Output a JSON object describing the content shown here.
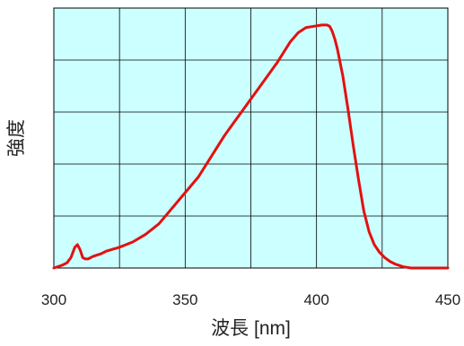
{
  "chart_data": {
    "type": "line",
    "title": "",
    "xlabel": "波長 [nm]",
    "ylabel": "強度",
    "xlim": [
      300,
      450
    ],
    "ylim": [
      0,
      1
    ],
    "x_ticks": [
      300,
      350,
      400,
      450
    ],
    "x_tick_labels": [
      "300",
      "350",
      "400",
      "450"
    ],
    "y_tick_labels": [],
    "grid": true,
    "x_grid_divisions": 6,
    "y_grid_divisions": 5,
    "legend": "none",
    "colors": {
      "plot_background": "#ccffff",
      "grid": "#000000",
      "line": "#e31010"
    },
    "series": [
      {
        "values_x": [
          300,
          303,
          305,
          306.5,
          308,
          309,
          310,
          311,
          312,
          313,
          315,
          318,
          320,
          325,
          330,
          335,
          340,
          345,
          350,
          355,
          360,
          365,
          370,
          375,
          380,
          385,
          390,
          393,
          396,
          399,
          402,
          404,
          405,
          406,
          407,
          408,
          410,
          412,
          414,
          416,
          418,
          420,
          422,
          424,
          426,
          428,
          430,
          433,
          436,
          438,
          440,
          442,
          445,
          450
        ],
        "values_y": [
          0.0,
          0.01,
          0.02,
          0.04,
          0.08,
          0.09,
          0.07,
          0.04,
          0.035,
          0.035,
          0.045,
          0.055,
          0.065,
          0.08,
          0.1,
          0.13,
          0.17,
          0.23,
          0.29,
          0.35,
          0.43,
          0.51,
          0.58,
          0.65,
          0.72,
          0.79,
          0.87,
          0.905,
          0.925,
          0.93,
          0.935,
          0.935,
          0.93,
          0.91,
          0.88,
          0.84,
          0.74,
          0.61,
          0.47,
          0.34,
          0.22,
          0.14,
          0.09,
          0.06,
          0.04,
          0.025,
          0.015,
          0.005,
          0.0,
          0.0,
          0.0,
          0.0,
          0.0,
          0.0
        ]
      }
    ]
  }
}
